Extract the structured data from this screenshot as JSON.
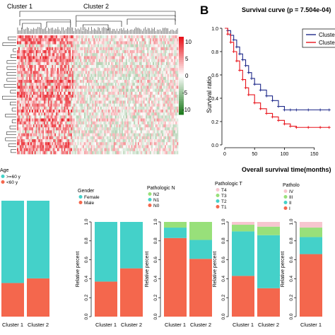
{
  "heatmap": {
    "panel_letter": "",
    "cluster_labels": [
      "Cluster 1",
      "Cluster 2"
    ],
    "colorbar_ticks": [
      10,
      5,
      0,
      -5,
      -10
    ],
    "colors": {
      "high": "#e8141c",
      "mid": "#ffffff",
      "low": "#1e7a1e"
    },
    "rows": 40,
    "cols": 120,
    "cluster1_cols": 42
  },
  "survival": {
    "panel_letter": "B",
    "title": "Survival curve (p = 7.504e-04)",
    "xlabel": "Overall survival time(months)",
    "ylabel": "Survival ratio",
    "xticks": [
      0,
      50,
      100,
      150
    ],
    "yticks": [
      0.0,
      0.2,
      0.4,
      0.6,
      0.8,
      1.0
    ],
    "xlim": [
      0,
      180
    ],
    "ylim": [
      0,
      1
    ],
    "legend": [
      "Cluster 1",
      "Cluster 2"
    ],
    "colors": {
      "cluster1": "#1f2a8a",
      "cluster2": "#e8141c"
    }
  },
  "chart_data": [
    {
      "type": "line",
      "title": "Survival curve (p = 7.504e-04)",
      "xlabel": "Overall survival time(months)",
      "ylabel": "Survival ratio",
      "xlim": [
        0,
        180
      ],
      "ylim": [
        0,
        1
      ],
      "legend_placement": "top-right",
      "series": [
        {
          "name": "Cluster 1",
          "x": [
            0,
            5,
            10,
            15,
            20,
            25,
            30,
            35,
            40,
            45,
            50,
            60,
            70,
            80,
            90,
            100,
            110,
            120,
            140,
            160,
            175
          ],
          "y": [
            1.0,
            0.98,
            0.94,
            0.9,
            0.84,
            0.78,
            0.73,
            0.68,
            0.62,
            0.57,
            0.52,
            0.47,
            0.42,
            0.38,
            0.33,
            0.3,
            0.3,
            0.3,
            0.3,
            0.3,
            0.3
          ]
        },
        {
          "name": "Cluster 2",
          "x": [
            0,
            5,
            10,
            15,
            20,
            25,
            30,
            35,
            40,
            50,
            60,
            70,
            80,
            90,
            100,
            110,
            120,
            140,
            160,
            175
          ],
          "y": [
            1.0,
            0.95,
            0.88,
            0.8,
            0.72,
            0.64,
            0.56,
            0.49,
            0.43,
            0.36,
            0.31,
            0.27,
            0.24,
            0.21,
            0.18,
            0.16,
            0.15,
            0.15,
            0.15,
            0.15
          ]
        }
      ]
    },
    {
      "type": "bar",
      "title": "Age",
      "ylabel": "",
      "stacked": true,
      "categories": [
        "Cluster 1",
        "Cluster 2"
      ],
      "series": [
        {
          "name": "<60 y",
          "values": [
            0.29,
            0.33
          ],
          "color": "#f4674d"
        },
        {
          "name": ">=60 y",
          "values": [
            0.71,
            0.67
          ],
          "color": "#44d1c9"
        }
      ]
    },
    {
      "type": "bar",
      "title": "Gender",
      "ylabel": "Relative percent",
      "stacked": true,
      "yticks": [
        0.0,
        0.2,
        0.4,
        0.6,
        0.8,
        1.0
      ],
      "categories": [
        "Cluster 1",
        "Cluster 2"
      ],
      "series": [
        {
          "name": "Male",
          "values": [
            0.37,
            0.51
          ],
          "color": "#f4674d"
        },
        {
          "name": "Female",
          "values": [
            0.63,
            0.49
          ],
          "color": "#44d1c9"
        }
      ]
    },
    {
      "type": "bar",
      "title": "Pathologic N",
      "ylabel": "Relative percent",
      "stacked": true,
      "yticks": [
        0.0,
        0.2,
        0.4,
        0.6,
        0.8,
        1.0
      ],
      "categories": [
        "Cluster 1",
        "Cluster 2"
      ],
      "series": [
        {
          "name": "N0",
          "values": [
            0.83,
            0.61
          ],
          "color": "#f4674d"
        },
        {
          "name": "N1",
          "values": [
            0.11,
            0.2
          ],
          "color": "#44d1c9"
        },
        {
          "name": "N2",
          "values": [
            0.06,
            0.19
          ],
          "color": "#98e07a"
        }
      ]
    },
    {
      "type": "bar",
      "title": "Pathologic T",
      "ylabel": "Relative percent",
      "stacked": true,
      "yticks": [
        0.0,
        0.2,
        0.4,
        0.6,
        0.8,
        1.0
      ],
      "categories": [
        "Cluster 1",
        "Cluster 2"
      ],
      "series": [
        {
          "name": "T1",
          "values": [
            0.43,
            0.3
          ],
          "color": "#f4674d"
        },
        {
          "name": "T2",
          "values": [
            0.47,
            0.56
          ],
          "color": "#44d1c9"
        },
        {
          "name": "T3",
          "values": [
            0.07,
            0.09
          ],
          "color": "#98e07a"
        },
        {
          "name": "T4",
          "values": [
            0.03,
            0.05
          ],
          "color": "#f7c6cf"
        }
      ]
    },
    {
      "type": "bar",
      "title": "Patholo",
      "ylabel": "Relative percent",
      "stacked": true,
      "yticks": [
        0.0,
        0.2,
        0.4,
        0.6,
        0.8,
        1.0
      ],
      "categories": [
        "Cluster 1"
      ],
      "series": [
        {
          "name": "I",
          "values": [
            0.66
          ],
          "color": "#f4674d"
        },
        {
          "name": "II",
          "values": [
            0.18
          ],
          "color": "#44d1c9"
        },
        {
          "name": "III",
          "values": [
            0.1
          ],
          "color": "#98e07a"
        },
        {
          "name": "IV",
          "values": [
            0.06
          ],
          "color": "#f7c6cf"
        }
      ]
    }
  ]
}
